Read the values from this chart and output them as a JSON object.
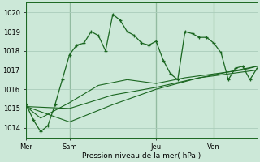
{
  "bg_color": "#cce8d8",
  "grid_color": "#aaccbb",
  "line_color": "#1a6620",
  "xlabel": "Pression niveau de la mer( hPa )",
  "ylim": [
    1013.5,
    1020.5
  ],
  "yticks": [
    1014,
    1015,
    1016,
    1017,
    1018,
    1019,
    1020
  ],
  "day_labels": [
    "Mer",
    "Sam",
    "Jeu",
    "Ven"
  ],
  "day_positions": [
    0,
    6,
    18,
    26
  ],
  "xlim": [
    0,
    32
  ],
  "line1_x": [
    0,
    1,
    2,
    3,
    4,
    5,
    6,
    7,
    8,
    9,
    10,
    11,
    12,
    13,
    14,
    15,
    16,
    17,
    18,
    19,
    20,
    21,
    22,
    23,
    24,
    25,
    26,
    27,
    28,
    29,
    30,
    31,
    32
  ],
  "line1_y": [
    1015.2,
    1014.4,
    1013.8,
    1014.1,
    1015.2,
    1016.5,
    1017.8,
    1018.3,
    1018.4,
    1019.0,
    1018.8,
    1018.0,
    1019.9,
    1019.6,
    1019.0,
    1018.8,
    1018.4,
    1018.3,
    1018.5,
    1017.5,
    1016.8,
    1016.5,
    1019.0,
    1018.9,
    1018.7,
    1018.7,
    1018.4,
    1017.9,
    1016.5,
    1017.1,
    1017.2,
    1016.5,
    1017.1
  ],
  "line2_x": [
    0,
    2,
    6,
    10,
    14,
    18,
    22,
    26,
    30,
    32
  ],
  "line2_y": [
    1015.1,
    1014.5,
    1015.3,
    1016.2,
    1016.5,
    1016.3,
    1016.6,
    1016.8,
    1017.0,
    1017.2
  ],
  "line3_x": [
    0,
    6,
    12,
    18,
    24,
    32
  ],
  "line3_y": [
    1015.1,
    1015.0,
    1015.7,
    1016.1,
    1016.6,
    1017.2
  ],
  "line4_x": [
    0,
    6,
    12,
    18,
    24,
    32
  ],
  "line4_y": [
    1015.1,
    1014.3,
    1015.2,
    1016.0,
    1016.6,
    1017.0
  ]
}
